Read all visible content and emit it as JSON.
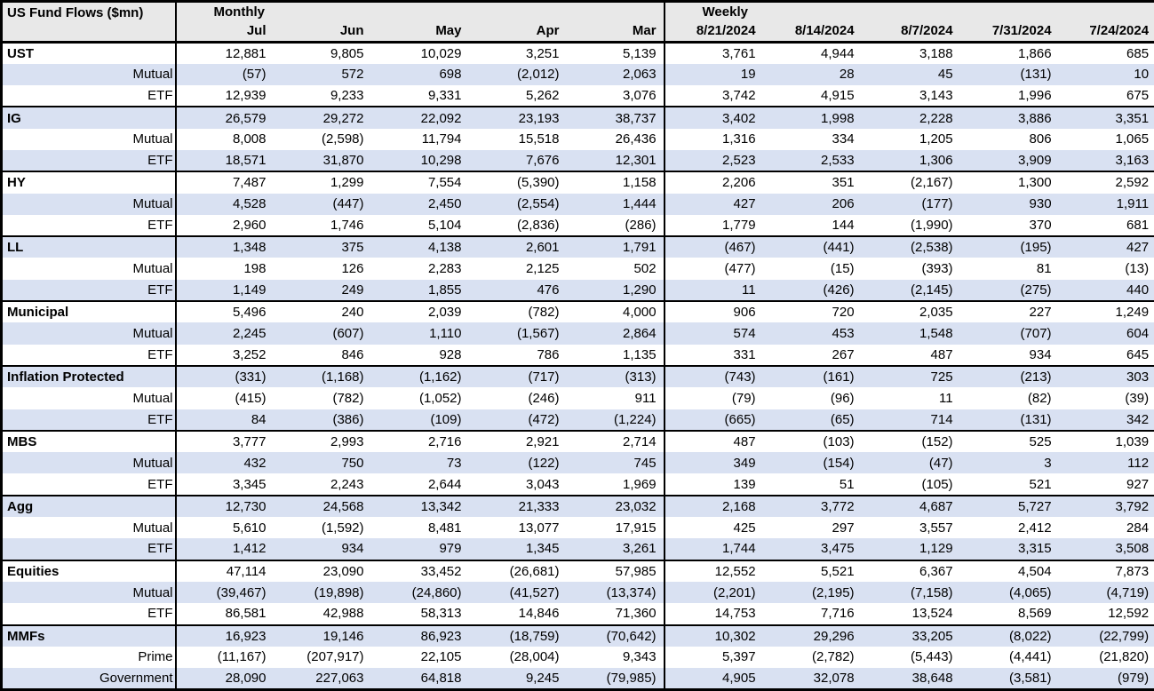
{
  "table": {
    "title": "US Fund Flows ($mn)",
    "colors": {
      "stripe": "#d9e1f2",
      "header_bg": "#e8e8e8",
      "border": "#000000"
    },
    "sections": [
      {
        "label": "Monthly",
        "columns": [
          "Jul",
          "Jun",
          "May",
          "Apr",
          "Mar"
        ]
      },
      {
        "label": "Weekly",
        "columns": [
          "8/21/2024",
          "8/14/2024",
          "8/7/2024",
          "7/31/2024",
          "7/24/2024"
        ]
      }
    ],
    "groups": [
      {
        "name": "UST",
        "rows": [
          {
            "label": "UST",
            "category": true,
            "monthly": [
              "12,881",
              "9,805",
              "10,029",
              "3,251",
              "5,139"
            ],
            "weekly": [
              "3,761",
              "4,944",
              "3,188",
              "1,866",
              "685"
            ]
          },
          {
            "label": "Mutual",
            "category": false,
            "monthly": [
              "(57)",
              "572",
              "698",
              "(2,012)",
              "2,063"
            ],
            "weekly": [
              "19",
              "28",
              "45",
              "(131)",
              "10"
            ]
          },
          {
            "label": "ETF",
            "category": false,
            "monthly": [
              "12,939",
              "9,233",
              "9,331",
              "5,262",
              "3,076"
            ],
            "weekly": [
              "3,742",
              "4,915",
              "3,143",
              "1,996",
              "675"
            ]
          }
        ]
      },
      {
        "name": "IG",
        "rows": [
          {
            "label": "IG",
            "category": true,
            "monthly": [
              "26,579",
              "29,272",
              "22,092",
              "23,193",
              "38,737"
            ],
            "weekly": [
              "3,402",
              "1,998",
              "2,228",
              "3,886",
              "3,351"
            ]
          },
          {
            "label": "Mutual",
            "category": false,
            "monthly": [
              "8,008",
              "(2,598)",
              "11,794",
              "15,518",
              "26,436"
            ],
            "weekly": [
              "1,316",
              "334",
              "1,205",
              "806",
              "1,065"
            ]
          },
          {
            "label": "ETF",
            "category": false,
            "monthly": [
              "18,571",
              "31,870",
              "10,298",
              "7,676",
              "12,301"
            ],
            "weekly": [
              "2,523",
              "2,533",
              "1,306",
              "3,909",
              "3,163"
            ]
          }
        ]
      },
      {
        "name": "HY",
        "rows": [
          {
            "label": "HY",
            "category": true,
            "monthly": [
              "7,487",
              "1,299",
              "7,554",
              "(5,390)",
              "1,158"
            ],
            "weekly": [
              "2,206",
              "351",
              "(2,167)",
              "1,300",
              "2,592"
            ]
          },
          {
            "label": "Mutual",
            "category": false,
            "monthly": [
              "4,528",
              "(447)",
              "2,450",
              "(2,554)",
              "1,444"
            ],
            "weekly": [
              "427",
              "206",
              "(177)",
              "930",
              "1,911"
            ]
          },
          {
            "label": "ETF",
            "category": false,
            "monthly": [
              "2,960",
              "1,746",
              "5,104",
              "(2,836)",
              "(286)"
            ],
            "weekly": [
              "1,779",
              "144",
              "(1,990)",
              "370",
              "681"
            ]
          }
        ]
      },
      {
        "name": "LL",
        "rows": [
          {
            "label": "LL",
            "category": true,
            "monthly": [
              "1,348",
              "375",
              "4,138",
              "2,601",
              "1,791"
            ],
            "weekly": [
              "(467)",
              "(441)",
              "(2,538)",
              "(195)",
              "427"
            ]
          },
          {
            "label": "Mutual",
            "category": false,
            "monthly": [
              "198",
              "126",
              "2,283",
              "2,125",
              "502"
            ],
            "weekly": [
              "(477)",
              "(15)",
              "(393)",
              "81",
              "(13)"
            ]
          },
          {
            "label": "ETF",
            "category": false,
            "monthly": [
              "1,149",
              "249",
              "1,855",
              "476",
              "1,290"
            ],
            "weekly": [
              "11",
              "(426)",
              "(2,145)",
              "(275)",
              "440"
            ]
          }
        ]
      },
      {
        "name": "Municipal",
        "rows": [
          {
            "label": "Municipal",
            "category": true,
            "monthly": [
              "5,496",
              "240",
              "2,039",
              "(782)",
              "4,000"
            ],
            "weekly": [
              "906",
              "720",
              "2,035",
              "227",
              "1,249"
            ]
          },
          {
            "label": "Mutual",
            "category": false,
            "monthly": [
              "2,245",
              "(607)",
              "1,110",
              "(1,567)",
              "2,864"
            ],
            "weekly": [
              "574",
              "453",
              "1,548",
              "(707)",
              "604"
            ]
          },
          {
            "label": "ETF",
            "category": false,
            "monthly": [
              "3,252",
              "846",
              "928",
              "786",
              "1,135"
            ],
            "weekly": [
              "331",
              "267",
              "487",
              "934",
              "645"
            ]
          }
        ]
      },
      {
        "name": "Inflation Protected",
        "rows": [
          {
            "label": "Inflation Protected",
            "category": true,
            "monthly": [
              "(331)",
              "(1,168)",
              "(1,162)",
              "(717)",
              "(313)"
            ],
            "weekly": [
              "(743)",
              "(161)",
              "725",
              "(213)",
              "303"
            ]
          },
          {
            "label": "Mutual",
            "category": false,
            "monthly": [
              "(415)",
              "(782)",
              "(1,052)",
              "(246)",
              "911"
            ],
            "weekly": [
              "(79)",
              "(96)",
              "11",
              "(82)",
              "(39)"
            ]
          },
          {
            "label": "ETF",
            "category": false,
            "monthly": [
              "84",
              "(386)",
              "(109)",
              "(472)",
              "(1,224)"
            ],
            "weekly": [
              "(665)",
              "(65)",
              "714",
              "(131)",
              "342"
            ]
          }
        ]
      },
      {
        "name": "MBS",
        "rows": [
          {
            "label": "MBS",
            "category": true,
            "monthly": [
              "3,777",
              "2,993",
              "2,716",
              "2,921",
              "2,714"
            ],
            "weekly": [
              "487",
              "(103)",
              "(152)",
              "525",
              "1,039"
            ]
          },
          {
            "label": "Mutual",
            "category": false,
            "monthly": [
              "432",
              "750",
              "73",
              "(122)",
              "745"
            ],
            "weekly": [
              "349",
              "(154)",
              "(47)",
              "3",
              "112"
            ]
          },
          {
            "label": "ETF",
            "category": false,
            "monthly": [
              "3,345",
              "2,243",
              "2,644",
              "3,043",
              "1,969"
            ],
            "weekly": [
              "139",
              "51",
              "(105)",
              "521",
              "927"
            ]
          }
        ]
      },
      {
        "name": "Agg",
        "rows": [
          {
            "label": "Agg",
            "category": true,
            "monthly": [
              "12,730",
              "24,568",
              "13,342",
              "21,333",
              "23,032"
            ],
            "weekly": [
              "2,168",
              "3,772",
              "4,687",
              "5,727",
              "3,792"
            ]
          },
          {
            "label": "Mutual",
            "category": false,
            "monthly": [
              "5,610",
              "(1,592)",
              "8,481",
              "13,077",
              "17,915"
            ],
            "weekly": [
              "425",
              "297",
              "3,557",
              "2,412",
              "284"
            ]
          },
          {
            "label": "ETF",
            "category": false,
            "monthly": [
              "1,412",
              "934",
              "979",
              "1,345",
              "3,261"
            ],
            "weekly": [
              "1,744",
              "3,475",
              "1,129",
              "3,315",
              "3,508"
            ]
          }
        ]
      },
      {
        "name": "Equities",
        "rows": [
          {
            "label": "Equities",
            "category": true,
            "monthly": [
              "47,114",
              "23,090",
              "33,452",
              "(26,681)",
              "57,985"
            ],
            "weekly": [
              "12,552",
              "5,521",
              "6,367",
              "4,504",
              "7,873"
            ]
          },
          {
            "label": "Mutual",
            "category": false,
            "monthly": [
              "(39,467)",
              "(19,898)",
              "(24,860)",
              "(41,527)",
              "(13,374)"
            ],
            "weekly": [
              "(2,201)",
              "(2,195)",
              "(7,158)",
              "(4,065)",
              "(4,719)"
            ]
          },
          {
            "label": "ETF",
            "category": false,
            "monthly": [
              "86,581",
              "42,988",
              "58,313",
              "14,846",
              "71,360"
            ],
            "weekly": [
              "14,753",
              "7,716",
              "13,524",
              "8,569",
              "12,592"
            ]
          }
        ]
      },
      {
        "name": "MMFs",
        "rows": [
          {
            "label": "MMFs",
            "category": true,
            "monthly": [
              "16,923",
              "19,146",
              "86,923",
              "(18,759)",
              "(70,642)"
            ],
            "weekly": [
              "10,302",
              "29,296",
              "33,205",
              "(8,022)",
              "(22,799)"
            ]
          },
          {
            "label": "Prime",
            "category": false,
            "monthly": [
              "(11,167)",
              "(207,917)",
              "22,105",
              "(28,004)",
              "9,343"
            ],
            "weekly": [
              "5,397",
              "(2,782)",
              "(5,443)",
              "(4,441)",
              "(21,820)"
            ]
          },
          {
            "label": "Government",
            "category": false,
            "monthly": [
              "28,090",
              "227,063",
              "64,818",
              "9,245",
              "(79,985)"
            ],
            "weekly": [
              "4,905",
              "32,078",
              "38,648",
              "(3,581)",
              "(979)"
            ]
          }
        ]
      }
    ]
  }
}
